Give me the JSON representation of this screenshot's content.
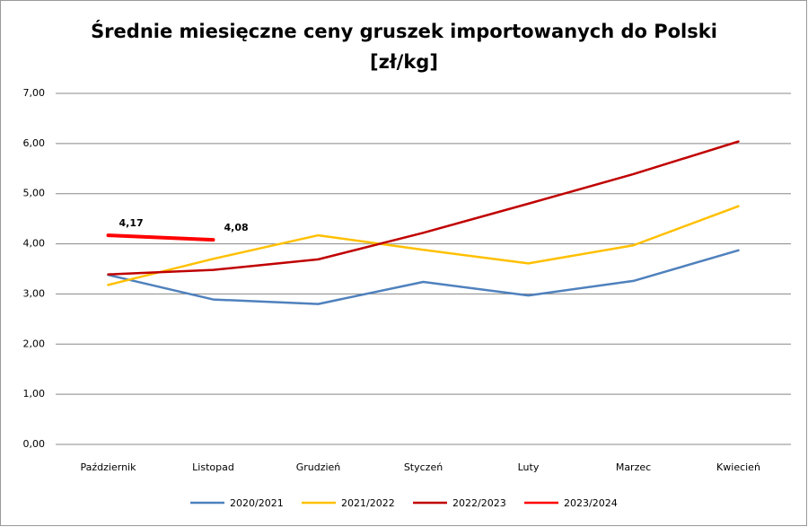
{
  "chart_data": {
    "type": "line",
    "title": [
      "Średnie miesięczne ceny gruszek importowanych do Polski",
      "[zł/kg]"
    ],
    "categories": [
      "Październik",
      "Listopad",
      "Grudzień",
      "Styczeń",
      "Luty",
      "Marzec",
      "Kwiecień"
    ],
    "series": [
      {
        "name": "2020/2021",
        "color": "#4f81bd",
        "values": [
          3.38,
          2.89,
          2.8,
          3.24,
          2.97,
          3.26,
          3.87
        ]
      },
      {
        "name": "2021/2022",
        "color": "#ffc000",
        "values": [
          3.18,
          3.7,
          4.17,
          3.88,
          3.61,
          3.97,
          4.75
        ]
      },
      {
        "name": "2022/2023",
        "color": "#c00000",
        "values": [
          3.39,
          3.48,
          3.69,
          4.22,
          4.8,
          5.39,
          6.04
        ]
      },
      {
        "name": "2023/2024",
        "color": "#ff0000",
        "values": [
          4.17,
          4.08,
          null,
          null,
          null,
          null,
          null
        ],
        "value_labels": [
          "4,17",
          "4,08",
          null,
          null,
          null,
          null,
          null
        ]
      }
    ],
    "ylim": [
      0,
      7
    ],
    "yticks": [
      {
        "value": 0,
        "label": "0,00"
      },
      {
        "value": 1,
        "label": "1,00"
      },
      {
        "value": 2,
        "label": "2,00"
      },
      {
        "value": 3,
        "label": "3,00"
      },
      {
        "value": 4,
        "label": "4,00"
      },
      {
        "value": 5,
        "label": "5,00"
      },
      {
        "value": 6,
        "label": "6,00"
      },
      {
        "value": 7,
        "label": "7,00"
      }
    ],
    "grid": true,
    "legend": "bottom"
  }
}
